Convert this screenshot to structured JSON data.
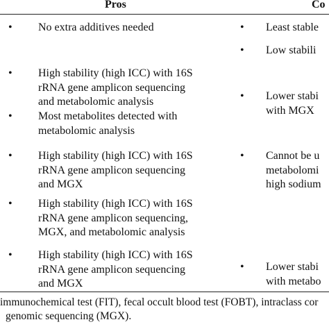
{
  "header": {
    "pros": "Pros",
    "cons": "Co"
  },
  "rows": [
    {
      "pros": [
        "No extra additives needed"
      ],
      "cons": [
        [
          "Least stable"
        ],
        [
          "Low stabili"
        ]
      ]
    },
    {
      "pros": [
        "High stability (high ICC) with 16S rRNA gene amplicon sequencing and metabolomic analysis",
        "Most metabolites detected with metabolomic analysis"
      ],
      "cons": [
        [
          "Lower stabi",
          "with MGX"
        ]
      ]
    },
    {
      "pros": [
        "High stability (high ICC) with 16S rRNA gene amplicon sequencing and MGX"
      ],
      "cons": [
        [
          "Cannot be u",
          "metabolomi",
          "high sodium"
        ]
      ]
    },
    {
      "pros": [
        "High stability (high ICC) with 16S rRNA gene amplicon sequencing, MGX, and metabolomic analysis"
      ],
      "cons": []
    },
    {
      "pros": [
        "High stability (high ICC) with 16S rRNA gene amplicon sequencing and MGX"
      ],
      "cons": [
        [
          "Lower stabi",
          "with metabo"
        ]
      ]
    }
  ],
  "footnote": [
    "immunochemical test (FIT), fecal occult blood test (FOBT), intraclass cor",
    "genomic sequencing (MGX)."
  ]
}
